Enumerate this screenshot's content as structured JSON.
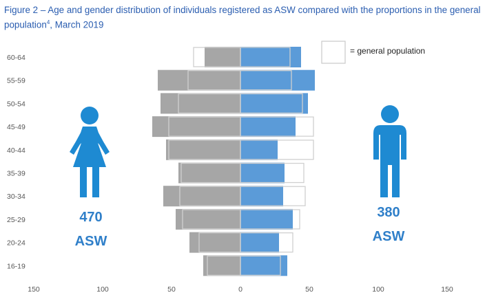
{
  "figure": {
    "title_main": "Figure 2 – Age and gender distribution of individuals registered as ASW compared with the proportions in the general population",
    "title_sup": "4",
    "title_tail": ", March 2019"
  },
  "legend": {
    "label": "= general population"
  },
  "female": {
    "count": "470",
    "unit": "ASW",
    "icon": "female-icon"
  },
  "male": {
    "count": "380",
    "unit": "ASW",
    "icon": "male-icon"
  },
  "colors": {
    "asw_female": "#a6a6a6",
    "asw_male": "#5b9bd8",
    "general_outline": "#d0d0d0",
    "accent_text": "#2f7fc9",
    "icon": "#1e8ad2"
  },
  "chart_data": {
    "type": "bar",
    "orientation": "horizontal population pyramid",
    "categories": [
      "60-64",
      "55-59",
      "50-54",
      "45-49",
      "40-44",
      "35-39",
      "30-34",
      "25-29",
      "20-24",
      "16-19"
    ],
    "series": [
      {
        "name": "",
        "side": "left",
        "values": [
          26,
          60,
          58,
          64,
          54,
          45,
          56,
          47,
          37,
          27
        ]
      },
      {
        "name": "",
        "side": "right",
        "values": [
          44,
          54,
          49,
          40,
          27,
          32,
          31,
          38,
          28,
          34
        ]
      }
    ],
    "general_population": {
      "left": [
        34,
        38,
        45,
        52,
        52,
        43,
        44,
        42,
        30,
        24
      ],
      "right": [
        36,
        37,
        45,
        53,
        53,
        46,
        47,
        43,
        38,
        29
      ]
    },
    "xtick_labels": [
      "150",
      "100",
      "50",
      "0",
      "50",
      "100",
      "150"
    ],
    "xtick_values": [
      -150,
      -100,
      -50,
      0,
      50,
      100,
      150
    ],
    "xlim": [
      -150,
      150
    ],
    "grid": false
  }
}
